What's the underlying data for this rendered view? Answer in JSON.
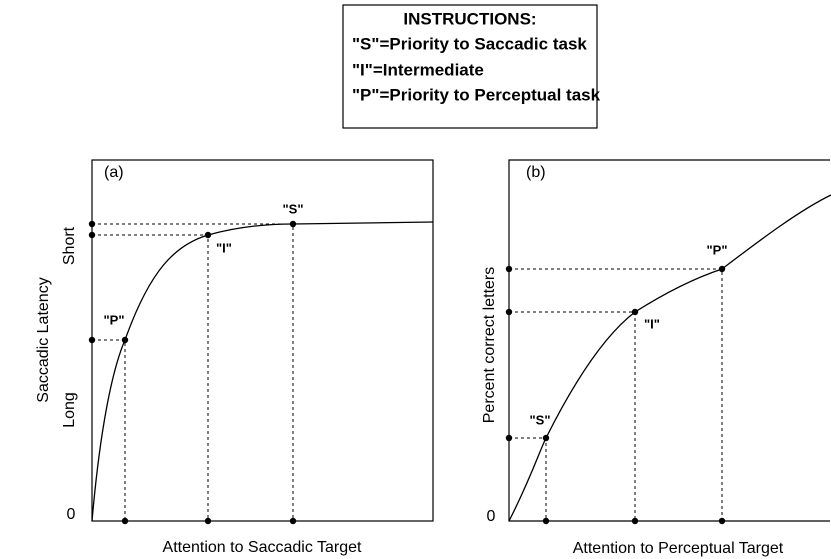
{
  "instructions": {
    "title": "INSTRUCTIONS:",
    "lines": [
      "\"S\"=Priority to Saccadic task",
      "\"I\"=Intermediate",
      "\"P\"=Priority to Perceptual task"
    ]
  },
  "panel_a": {
    "label": "(a)",
    "y_label": "Saccadic Latency",
    "y_high": "Short",
    "y_low": "Long",
    "origin": "0",
    "x_label": "Attention to Saccadic Target",
    "points": [
      "\"S\"",
      "\"I\"",
      "\"P\""
    ]
  },
  "panel_b": {
    "label": "(b)",
    "y_label": "Percent correct letters",
    "origin": "0",
    "x_label": "Attention to Perceptual Target",
    "points": [
      "\"S\"",
      "\"I\"",
      "\"P\""
    ]
  }
}
